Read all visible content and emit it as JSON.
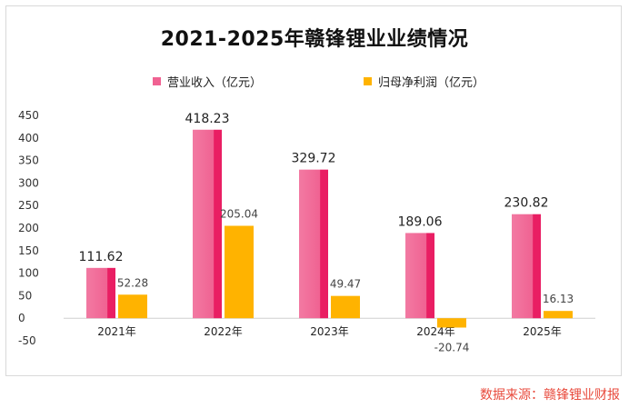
{
  "chart_data": {
    "type": "bar",
    "title": "2021-2025年赣锋锂业业绩情况",
    "categories": [
      "2021年",
      "2022年",
      "2023年",
      "2024年",
      "2025年"
    ],
    "series": [
      {
        "name": "营业收入（亿元）",
        "values": [
          111.62,
          418.23,
          329.72,
          189.06,
          230.82
        ],
        "labels": [
          "111.62",
          "418.23",
          "329.72",
          "189.06",
          "230.82"
        ],
        "color": "#f06292",
        "accent": "#e91e63"
      },
      {
        "name": "归母净利润（亿元）",
        "values": [
          52.28,
          205.04,
          49.47,
          -20.74,
          16.13
        ],
        "labels": [
          "52.28",
          "205.04",
          "49.47",
          "-20.74",
          "16.13"
        ],
        "color": "#ffb300"
      }
    ],
    "y_ticks": [
      "-50",
      "0",
      "50",
      "100",
      "150",
      "200",
      "250",
      "300",
      "350",
      "400",
      "450"
    ],
    "ylim": [
      -50,
      450
    ],
    "grid": false,
    "legend": "top"
  },
  "source": "数据来源：赣锋锂业财报"
}
